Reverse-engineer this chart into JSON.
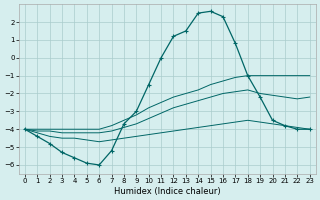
{
  "xlabel": "Humidex (Indice chaleur)",
  "x": [
    0,
    1,
    2,
    3,
    4,
    5,
    6,
    7,
    8,
    9,
    10,
    11,
    12,
    13,
    14,
    15,
    16,
    17,
    18,
    19,
    20,
    21,
    22,
    23
  ],
  "line_main": [
    -4.0,
    -4.4,
    -4.8,
    -5.3,
    -5.6,
    -5.9,
    -6.0,
    -5.2,
    -3.7,
    -3.0,
    -1.5,
    0.0,
    1.2,
    1.5,
    2.5,
    2.6,
    2.3,
    0.8,
    -1.0,
    -2.2,
    -3.5,
    -3.8,
    -4.0,
    -4.0
  ],
  "line_upper": [
    -4.0,
    -4.0,
    -4.0,
    -4.0,
    -4.0,
    -4.0,
    -4.0,
    -3.8,
    -3.5,
    -3.2,
    -2.8,
    -2.5,
    -2.2,
    -2.0,
    -1.8,
    -1.5,
    -1.3,
    -1.1,
    -1.0,
    -1.0,
    -1.0,
    -1.0,
    -1.0,
    -1.0
  ],
  "line_mid": [
    -4.0,
    -4.1,
    -4.1,
    -4.2,
    -4.2,
    -4.2,
    -4.2,
    -4.1,
    -3.9,
    -3.7,
    -3.4,
    -3.1,
    -2.8,
    -2.6,
    -2.4,
    -2.2,
    -2.0,
    -1.9,
    -1.8,
    -2.0,
    -2.1,
    -2.2,
    -2.3,
    -2.2
  ],
  "line_lower": [
    -4.0,
    -4.2,
    -4.4,
    -4.5,
    -4.5,
    -4.6,
    -4.7,
    -4.6,
    -4.5,
    -4.4,
    -4.3,
    -4.2,
    -4.1,
    -4.0,
    -3.9,
    -3.8,
    -3.7,
    -3.6,
    -3.5,
    -3.6,
    -3.7,
    -3.8,
    -3.9,
    -4.0
  ],
  "bg_color": "#d6eeee",
  "grid_color": "#aacccc",
  "line_color": "#006666",
  "ylim": [
    -6.5,
    3.0
  ],
  "yticks": [
    -6,
    -5,
    -4,
    -3,
    -2,
    -1,
    0,
    1,
    2
  ],
  "xticks": [
    0,
    1,
    2,
    3,
    4,
    5,
    6,
    7,
    8,
    9,
    10,
    11,
    12,
    13,
    14,
    15,
    16,
    17,
    18,
    19,
    20,
    21,
    22,
    23
  ]
}
